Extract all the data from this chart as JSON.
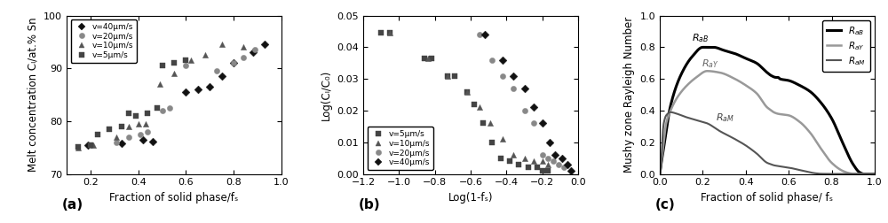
{
  "panel_a": {
    "xlabel": "Fraction of solid phase/fₛ",
    "ylabel": "Melt concentration Cₗ/at.% Sn",
    "xlim": [
      0.1,
      1.0
    ],
    "ylim": [
      70,
      100
    ],
    "xticks": [
      0.2,
      0.4,
      0.6,
      0.8,
      1.0
    ],
    "yticks": [
      70,
      80,
      90,
      100
    ],
    "series": {
      "v40": {
        "label": "v=40μm/s",
        "marker": "D",
        "color": "#111111",
        "x": [
          0.19,
          0.33,
          0.42,
          0.46,
          0.6,
          0.65,
          0.7,
          0.75,
          0.8,
          0.88,
          0.93
        ],
        "y": [
          75.5,
          75.8,
          76.5,
          76.2,
          85.5,
          86.0,
          86.5,
          88.5,
          91.0,
          93.0,
          94.5
        ]
      },
      "v20": {
        "label": "v=20μm/s",
        "marker": "o",
        "color": "#888888",
        "x": [
          0.2,
          0.31,
          0.36,
          0.41,
          0.44,
          0.5,
          0.53,
          0.6,
          0.73,
          0.8,
          0.84,
          0.89
        ],
        "y": [
          75.5,
          76.0,
          77.0,
          77.5,
          78.0,
          82.0,
          82.5,
          90.5,
          89.5,
          91.0,
          92.0,
          93.5
        ]
      },
      "v10": {
        "label": "v=10μm/s",
        "marker": "^",
        "color": "#555555",
        "x": [
          0.15,
          0.21,
          0.31,
          0.36,
          0.4,
          0.43,
          0.49,
          0.55,
          0.62,
          0.68,
          0.75,
          0.84
        ],
        "y": [
          75.0,
          75.5,
          77.0,
          79.0,
          79.5,
          79.5,
          87.0,
          89.0,
          91.5,
          92.5,
          94.5,
          94.0
        ]
      },
      "v5": {
        "label": "v=5μm/s",
        "marker": "s",
        "color": "#444444",
        "x": [
          0.15,
          0.2,
          0.23,
          0.28,
          0.33,
          0.36,
          0.39,
          0.44,
          0.48,
          0.5,
          0.55,
          0.6
        ],
        "y": [
          75.2,
          75.5,
          77.5,
          78.5,
          79.0,
          81.5,
          81.0,
          81.5,
          82.5,
          90.5,
          91.0,
          91.5
        ]
      }
    }
  },
  "panel_b": {
    "xlabel": "Log(1-fₛ)",
    "ylabel": "Log(Cₗ/C₀)",
    "xlim": [
      -1.2,
      0.0
    ],
    "ylim": [
      0.0,
      0.05
    ],
    "xticks": [
      -1.2,
      -1.0,
      -0.8,
      -0.6,
      -0.4,
      -0.2,
      0.0
    ],
    "yticks": [
      0.0,
      0.01,
      0.02,
      0.03,
      0.04,
      0.05
    ],
    "series": {
      "v5": {
        "label": "v=5μm/s",
        "marker": "s",
        "color": "#444444",
        "x": [
          -1.1,
          -1.05,
          -0.86,
          -0.82,
          -0.73,
          -0.69,
          -0.62,
          -0.58,
          -0.53,
          -0.48,
          -0.43,
          -0.38,
          -0.33,
          -0.28,
          -0.23,
          -0.2,
          -0.17
        ],
        "y": [
          0.0445,
          0.0445,
          0.0365,
          0.0365,
          0.031,
          0.031,
          0.026,
          0.022,
          0.016,
          0.01,
          0.005,
          0.004,
          0.003,
          0.002,
          0.002,
          0.001,
          0.001
        ]
      },
      "v10": {
        "label": "v=10μm/s",
        "marker": "^",
        "color": "#555555",
        "x": [
          -1.05,
          -0.84,
          -0.73,
          -0.62,
          -0.55,
          -0.49,
          -0.42,
          -0.36,
          -0.3,
          -0.25,
          -0.2,
          -0.17
        ],
        "y": [
          0.0445,
          0.0365,
          0.031,
          0.026,
          0.021,
          0.016,
          0.011,
          0.006,
          0.005,
          0.004,
          0.004,
          0.003
        ]
      },
      "v20": {
        "label": "v=20μm/s",
        "marker": "o",
        "color": "#888888",
        "x": [
          -0.55,
          -0.48,
          -0.42,
          -0.36,
          -0.3,
          -0.25,
          -0.2,
          -0.17,
          -0.14,
          -0.11,
          -0.08
        ],
        "y": [
          0.044,
          0.036,
          0.031,
          0.027,
          0.02,
          0.016,
          0.006,
          0.005,
          0.004,
          0.003,
          0.002
        ]
      },
      "v40": {
        "label": "v=40μm/s",
        "marker": "D",
        "color": "#111111",
        "x": [
          -0.52,
          -0.42,
          -0.36,
          -0.3,
          -0.25,
          -0.2,
          -0.16,
          -0.13,
          -0.09,
          -0.06,
          -0.04
        ],
        "y": [
          0.044,
          0.036,
          0.031,
          0.027,
          0.021,
          0.016,
          0.01,
          0.006,
          0.005,
          0.003,
          0.001
        ]
      }
    }
  },
  "panel_c": {
    "xlabel": "Fraction of solid phase/ fₛ",
    "ylabel": "Mushy zone Rayleigh Number",
    "xlim": [
      0.0,
      1.0
    ],
    "ylim": [
      0.0,
      1.0
    ],
    "xticks": [
      0.0,
      0.2,
      0.4,
      0.6,
      0.8,
      1.0
    ],
    "yticks": [
      0.0,
      0.2,
      0.4,
      0.6,
      0.8,
      1.0
    ],
    "RaB_x": [
      0.0,
      0.005,
      0.02,
      0.05,
      0.1,
      0.15,
      0.2,
      0.25,
      0.3,
      0.35,
      0.4,
      0.45,
      0.5,
      0.52,
      0.54,
      0.55,
      0.56,
      0.6,
      0.65,
      0.7,
      0.75,
      0.8,
      0.85,
      0.9,
      0.93,
      0.95,
      1.0
    ],
    "RaB_y": [
      0.0,
      0.05,
      0.18,
      0.43,
      0.63,
      0.74,
      0.8,
      0.8,
      0.78,
      0.76,
      0.73,
      0.7,
      0.64,
      0.62,
      0.61,
      0.61,
      0.6,
      0.59,
      0.56,
      0.52,
      0.45,
      0.35,
      0.2,
      0.06,
      0.01,
      0.0,
      0.0
    ],
    "RaY_x": [
      0.0,
      0.005,
      0.01,
      0.02,
      0.03,
      0.05,
      0.08,
      0.12,
      0.17,
      0.22,
      0.28,
      0.35,
      0.4,
      0.45,
      0.5,
      0.52,
      0.53,
      0.55,
      0.6,
      0.65,
      0.7,
      0.75,
      0.8,
      0.85,
      0.88,
      0.9,
      1.0
    ],
    "RaY_y": [
      0.0,
      0.05,
      0.1,
      0.22,
      0.32,
      0.4,
      0.48,
      0.55,
      0.61,
      0.65,
      0.64,
      0.6,
      0.56,
      0.51,
      0.42,
      0.4,
      0.39,
      0.38,
      0.37,
      0.33,
      0.26,
      0.16,
      0.07,
      0.02,
      0.005,
      0.0,
      0.0
    ],
    "RaM_x": [
      0.0,
      0.005,
      0.01,
      0.015,
      0.02,
      0.03,
      0.05,
      0.08,
      0.12,
      0.17,
      0.22,
      0.28,
      0.35,
      0.4,
      0.45,
      0.5,
      0.52,
      0.53,
      0.55,
      0.6,
      0.65,
      0.7,
      0.72,
      0.75,
      0.8,
      1.0
    ],
    "RaM_y": [
      0.0,
      0.04,
      0.15,
      0.28,
      0.33,
      0.37,
      0.39,
      0.38,
      0.36,
      0.34,
      0.32,
      0.27,
      0.22,
      0.18,
      0.13,
      0.07,
      0.06,
      0.055,
      0.05,
      0.04,
      0.025,
      0.01,
      0.005,
      0.001,
      0.0,
      0.0
    ],
    "RaB_color": "#000000",
    "RaY_color": "#999999",
    "RaM_color": "#555555",
    "RaB_lw": 2.2,
    "RaY_lw": 1.8,
    "RaM_lw": 1.5
  },
  "bg_color": "#ffffff",
  "label_fontsize": 8.5,
  "tick_fontsize": 8,
  "marker_size": 4.5
}
